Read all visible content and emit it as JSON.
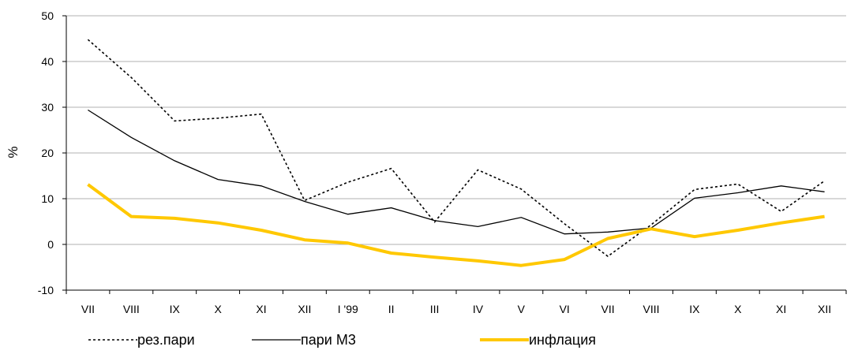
{
  "chart_data": {
    "type": "line",
    "categories": [
      "VII",
      "VIII",
      "IX",
      "X",
      "XI",
      "XII",
      "I '99",
      "II",
      "III",
      "IV",
      "V",
      "VI",
      "VII",
      "VIII",
      "IX",
      "X",
      "XI",
      "XII"
    ],
    "ylabel": "%",
    "ylim": [
      -10,
      50
    ],
    "yticks": [
      -10,
      0,
      10,
      20,
      30,
      40,
      50
    ],
    "grid": true,
    "legend_position": "bottom",
    "series": [
      {
        "name": "рез.пари",
        "style": "dotted",
        "color": "#000000",
        "values": [
          44.8,
          36.5,
          27.0,
          27.6,
          28.5,
          9.6,
          13.6,
          16.6,
          4.9,
          16.3,
          12.1,
          4.5,
          -2.6,
          4.3,
          12.0,
          13.2,
          7.2,
          13.9
        ]
      },
      {
        "name": "пари М3",
        "style": "solid",
        "color": "#000000",
        "values": [
          29.4,
          23.4,
          18.3,
          14.2,
          12.8,
          9.4,
          6.6,
          8.0,
          5.2,
          3.9,
          5.9,
          2.3,
          2.7,
          3.6,
          10.1,
          11.3,
          12.8,
          11.5
        ]
      },
      {
        "name": "инфлация",
        "style": "thick",
        "color": "#FFC800",
        "values": [
          13.1,
          6.1,
          5.7,
          4.7,
          3.1,
          1.0,
          0.3,
          -1.9,
          -2.8,
          -3.6,
          -4.6,
          -3.3,
          1.3,
          3.4,
          1.7,
          3.1,
          4.7,
          6.1
        ]
      }
    ]
  }
}
